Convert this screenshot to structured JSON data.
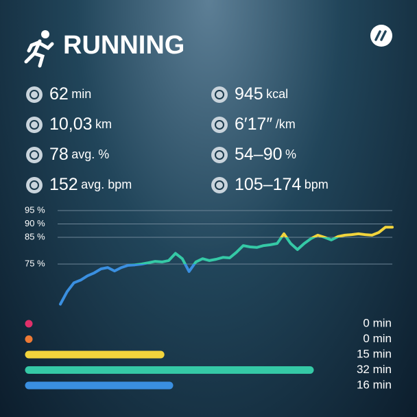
{
  "header": {
    "title": "RUNNING"
  },
  "stats": [
    {
      "value": "62",
      "unit": "min"
    },
    {
      "value": "945",
      "unit": "kcal"
    },
    {
      "value": "10,03",
      "unit": "km"
    },
    {
      "value": "6′17″",
      "unit": "/km"
    },
    {
      "value": "78",
      "unit": "avg. %"
    },
    {
      "value": "54–90",
      "unit": "%"
    },
    {
      "value": "152",
      "unit": "avg. bpm"
    },
    {
      "value": "105–174",
      "unit": "bpm"
    }
  ],
  "chart": {
    "type": "line",
    "values": [
      60,
      64.7,
      68,
      69,
      70.6,
      71.7,
      73.2,
      73.7,
      72.4,
      73.7,
      74.5,
      74.7,
      75,
      75.5,
      76,
      75.8,
      76.3,
      79,
      77,
      72.2,
      75.8,
      77,
      76.3,
      76.8,
      77.5,
      77.3,
      79.4,
      81.9,
      81.4,
      81.2,
      81.9,
      82.2,
      82.7,
      86.3,
      82.7,
      80.4,
      82.7,
      84.5,
      85.8,
      85,
      84,
      85.3,
      85.8,
      86,
      86.3,
      86,
      85.8,
      86.8,
      88.8,
      88.8
    ],
    "ylim": [
      58,
      97
    ],
    "yticks": [
      {
        "value": 95,
        "label": "95 %"
      },
      {
        "value": 90,
        "label": "90 %"
      },
      {
        "value": 85,
        "label": "85 %"
      },
      {
        "value": 75,
        "label": "75 %"
      }
    ],
    "grid": true,
    "colors": {
      "high": "#f2d43c",
      "mid": "#35c9a6",
      "low": "#3a8fe0"
    }
  },
  "zones": {
    "values": [
      0,
      0,
      15,
      32,
      16
    ],
    "value_labels": [
      "0 min",
      "0 min",
      "15 min",
      "32 min",
      "16 min"
    ],
    "colors": [
      "#e0306a",
      "#ee7a35",
      "#f2d43c",
      "#35c9a6",
      "#3a8fe0"
    ]
  }
}
